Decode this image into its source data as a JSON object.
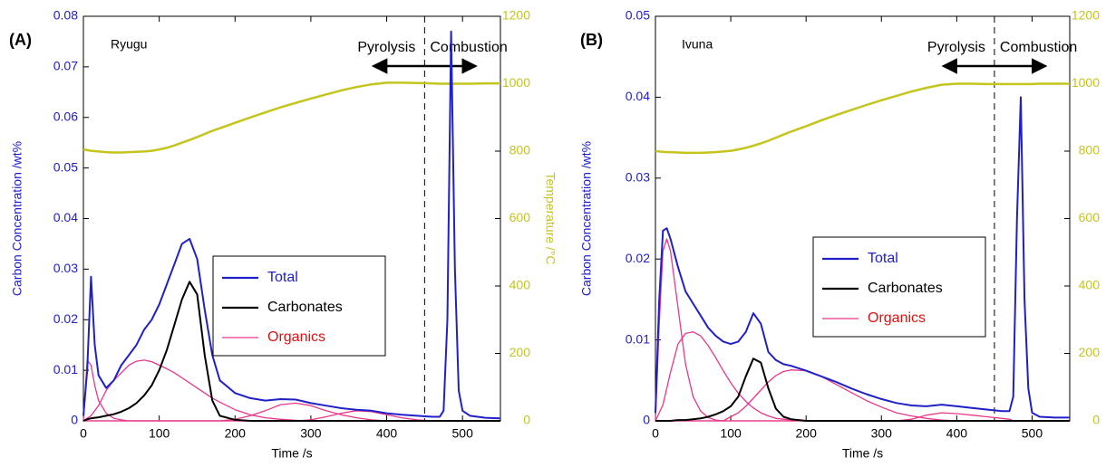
{
  "chart_data": [
    {
      "type": "line",
      "panel_label": "(A)",
      "sample": "Ryugu",
      "ylabel": "Carbon Concentration /wt%",
      "y2label": "Temperature /°C",
      "xlabel": "Time /s",
      "xlim": [
        0,
        550
      ],
      "xticks": [
        0,
        100,
        200,
        300,
        400,
        500
      ],
      "ylim": [
        0,
        0.08
      ],
      "yticks": [
        0,
        0.01,
        0.02,
        0.03,
        0.04,
        0.05,
        0.06,
        0.07,
        0.08
      ],
      "y2lim": [
        0,
        1200
      ],
      "y2ticks": [
        0,
        200,
        400,
        600,
        800,
        1000,
        1200
      ],
      "ycolor": "#2020c8",
      "y2color": "#c4c41c",
      "vline": 450,
      "annotations": [
        "Pyrolysis",
        "Combustion"
      ],
      "x": [
        0,
        5,
        10,
        15,
        20,
        30,
        40,
        50,
        60,
        70,
        80,
        90,
        100,
        110,
        120,
        130,
        140,
        150,
        160,
        170,
        180,
        200,
        220,
        240,
        260,
        280,
        300,
        320,
        340,
        360,
        380,
        400,
        420,
        440,
        460,
        470,
        475,
        480,
        485,
        490,
        495,
        500,
        510,
        530,
        550
      ],
      "series": [
        {
          "name": "Total",
          "color": "#2020c8",
          "label_color": "#2020c8",
          "values": [
            0.001,
            0.01,
            0.0285,
            0.015,
            0.009,
            0.0065,
            0.008,
            0.011,
            0.013,
            0.015,
            0.018,
            0.02,
            0.023,
            0.027,
            0.031,
            0.035,
            0.036,
            0.032,
            0.022,
            0.013,
            0.008,
            0.0055,
            0.0045,
            0.004,
            0.0043,
            0.0042,
            0.0035,
            0.003,
            0.0025,
            0.0022,
            0.002,
            0.0015,
            0.0012,
            0.001,
            0.0008,
            0.0008,
            0.002,
            0.02,
            0.077,
            0.03,
            0.006,
            0.002,
            0.001,
            0.0006,
            0.0005
          ]
        },
        {
          "name": "Carbonates",
          "color": "#000000",
          "label_color": "#000000",
          "values": [
            0,
            0.0003,
            0.0005,
            0.0006,
            0.0007,
            0.001,
            0.0013,
            0.0018,
            0.0025,
            0.0035,
            0.005,
            0.007,
            0.01,
            0.014,
            0.019,
            0.024,
            0.0275,
            0.025,
            0.013,
            0.004,
            0.001,
            0.0002,
            0,
            0,
            0,
            0,
            0,
            0,
            0,
            0,
            0,
            0,
            0,
            0,
            0,
            0,
            0,
            0,
            0,
            0,
            0,
            0,
            0,
            0,
            0
          ]
        },
        {
          "name": "Organics",
          "color": "#e8388a",
          "label_color": "#e01010",
          "components": [
            [
              0,
              0.012,
              0.011,
              0.007,
              0.004,
              0.0015,
              0.0005,
              0.0002,
              0,
              0,
              0,
              0,
              0,
              0,
              0,
              0,
              0,
              0,
              0,
              0,
              0,
              0,
              0,
              0,
              0,
              0,
              0,
              0,
              0,
              0,
              0,
              0,
              0,
              0,
              0,
              0,
              0,
              0,
              0,
              0,
              0,
              0,
              0,
              0,
              0
            ],
            [
              0,
              0.0005,
              0.001,
              0.002,
              0.003,
              0.006,
              0.008,
              0.0095,
              0.011,
              0.0118,
              0.012,
              0.0117,
              0.011,
              0.0103,
              0.0095,
              0.0085,
              0.0075,
              0.0065,
              0.0055,
              0.0045,
              0.0037,
              0.0022,
              0.0012,
              0.0006,
              0.0003,
              0.0001,
              0,
              0,
              0,
              0,
              0,
              0,
              0,
              0,
              0,
              0,
              0,
              0,
              0,
              0,
              0,
              0,
              0,
              0,
              0
            ],
            [
              0,
              0,
              0,
              0,
              0,
              0,
              0,
              0,
              0,
              0,
              0,
              0,
              0,
              0,
              0,
              0,
              0,
              0,
              0,
              0,
              0,
              0.0003,
              0.001,
              0.002,
              0.0032,
              0.0035,
              0.003,
              0.002,
              0.0012,
              0.0006,
              0.0002,
              0,
              0,
              0,
              0,
              0,
              0,
              0,
              0,
              0,
              0,
              0,
              0,
              0,
              0
            ],
            [
              0,
              0,
              0,
              0,
              0,
              0,
              0,
              0,
              0,
              0,
              0,
              0,
              0,
              0,
              0,
              0,
              0,
              0,
              0,
              0,
              0,
              0,
              0,
              0,
              0,
              0,
              0.0002,
              0.0008,
              0.0015,
              0.002,
              0.0018,
              0.0012,
              0.0006,
              0.0002,
              0,
              0,
              0,
              0,
              0,
              0,
              0,
              0,
              0,
              0,
              0
            ]
          ]
        },
        {
          "color": "#c4c41c",
          "axis": "y2",
          "values": [
            805,
            803,
            801,
            800,
            799,
            797,
            796,
            796,
            797,
            798,
            799,
            801,
            805,
            810,
            817,
            825,
            833,
            842,
            851,
            860,
            868,
            884,
            900,
            915,
            930,
            943,
            956,
            968,
            980,
            990,
            998,
            1003,
            1003,
            1002,
            1001,
            1000,
            1000,
            1000,
            1000,
            1000,
            1000,
            1000,
            1000,
            1001,
            1001
          ]
        }
      ]
    },
    {
      "type": "line",
      "panel_label": "(B)",
      "sample": "Ivuna",
      "ylabel": "Carbon Concentration /wt%",
      "xlabel": "Time /s",
      "xlim": [
        0,
        550
      ],
      "xticks": [
        0,
        100,
        200,
        300,
        400,
        500
      ],
      "ylim": [
        0,
        0.05
      ],
      "yticks": [
        0,
        0.01,
        0.02,
        0.03,
        0.04,
        0.05
      ],
      "y2lim": [
        0,
        1200
      ],
      "y2ticks": [
        0,
        200,
        400,
        600,
        800,
        1000,
        1200
      ],
      "ycolor": "#2020c8",
      "y2color": "#c4c41c",
      "vline": 450,
      "annotations": [
        "Pyrolysis",
        "Combustion"
      ],
      "x": [
        0,
        5,
        10,
        15,
        20,
        30,
        40,
        50,
        60,
        70,
        80,
        90,
        100,
        110,
        120,
        130,
        140,
        150,
        160,
        170,
        180,
        200,
        220,
        240,
        260,
        280,
        300,
        320,
        340,
        360,
        380,
        400,
        420,
        440,
        460,
        470,
        475,
        480,
        485,
        490,
        495,
        500,
        510,
        530,
        550
      ],
      "series": [
        {
          "name": "Total",
          "color": "#2020c8",
          "label_color": "#2020c8",
          "values": [
            0.001,
            0.015,
            0.0235,
            0.0238,
            0.0225,
            0.019,
            0.016,
            0.0145,
            0.013,
            0.0115,
            0.0105,
            0.0098,
            0.0095,
            0.0098,
            0.011,
            0.0133,
            0.012,
            0.0085,
            0.0075,
            0.007,
            0.0068,
            0.0062,
            0.0055,
            0.0048,
            0.004,
            0.0033,
            0.0027,
            0.0022,
            0.0019,
            0.0018,
            0.002,
            0.0018,
            0.0016,
            0.0014,
            0.0012,
            0.0012,
            0.003,
            0.025,
            0.04,
            0.015,
            0.004,
            0.001,
            0.0005,
            0.0004,
            0.0004
          ]
        },
        {
          "name": "Carbonates",
          "color": "#000000",
          "label_color": "#000000",
          "values": [
            0,
            0,
            0,
            0,
            0,
            0.0001,
            0.0001,
            0.0002,
            0.0003,
            0.0005,
            0.0008,
            0.0012,
            0.0018,
            0.003,
            0.0055,
            0.0077,
            0.0072,
            0.004,
            0.0015,
            0.0005,
            0.0002,
            0,
            0,
            0,
            0,
            0,
            0,
            0,
            0,
            0,
            0,
            0,
            0,
            0,
            0,
            0,
            0,
            0,
            0,
            0,
            0,
            0,
            0,
            0,
            0
          ]
        },
        {
          "name": "Organics",
          "color": "#e8388a",
          "label_color": "#e01010",
          "components": [
            [
              0,
              0.012,
              0.021,
              0.0225,
              0.021,
              0.014,
              0.007,
              0.003,
              0.0012,
              0.0004,
              0.0001,
              0,
              0,
              0,
              0,
              0,
              0,
              0,
              0,
              0,
              0,
              0,
              0,
              0,
              0,
              0,
              0,
              0,
              0,
              0,
              0,
              0,
              0,
              0,
              0,
              0,
              0,
              0,
              0,
              0,
              0,
              0,
              0,
              0,
              0
            ],
            [
              0,
              0.001,
              0.002,
              0.004,
              0.006,
              0.0095,
              0.0108,
              0.011,
              0.0105,
              0.0093,
              0.0078,
              0.0062,
              0.0047,
              0.0034,
              0.0024,
              0.0016,
              0.001,
              0.0006,
              0.0003,
              0.0002,
              0.0001,
              0,
              0,
              0,
              0,
              0,
              0,
              0,
              0,
              0,
              0,
              0,
              0,
              0,
              0,
              0,
              0,
              0,
              0,
              0,
              0,
              0,
              0,
              0,
              0
            ],
            [
              0,
              0,
              0,
              0,
              0,
              0,
              0,
              0,
              0,
              0,
              0,
              0,
              0.0005,
              0.001,
              0.0018,
              0.0028,
              0.0038,
              0.0048,
              0.0056,
              0.0061,
              0.0063,
              0.0062,
              0.0055,
              0.0045,
              0.0035,
              0.0025,
              0.0017,
              0.001,
              0.0006,
              0.0003,
              0.0001,
              0,
              0,
              0,
              0,
              0,
              0,
              0,
              0,
              0,
              0,
              0,
              0,
              0,
              0
            ],
            [
              0,
              0,
              0,
              0,
              0,
              0,
              0,
              0,
              0,
              0,
              0,
              0,
              0,
              0,
              0,
              0,
              0,
              0,
              0,
              0,
              0,
              0,
              0,
              0,
              0,
              0,
              0,
              0,
              0.0002,
              0.0007,
              0.001,
              0.0009,
              0.0007,
              0.0005,
              0.0003,
              0.0002,
              0,
              0,
              0,
              0,
              0,
              0,
              0,
              0,
              0
            ]
          ]
        },
        {
          "color": "#c4c41c",
          "axis": "y2",
          "values": [
            800,
            799,
            798,
            797,
            797,
            796,
            795,
            795,
            795,
            796,
            797,
            799,
            801,
            805,
            810,
            816,
            823,
            831,
            840,
            849,
            858,
            874,
            891,
            907,
            922,
            937,
            951,
            964,
            977,
            988,
            997,
            1000,
            1000,
            999,
            999,
            999,
            999,
            999,
            999,
            999,
            999,
            999,
            1000,
            1000,
            1000
          ]
        }
      ]
    }
  ]
}
